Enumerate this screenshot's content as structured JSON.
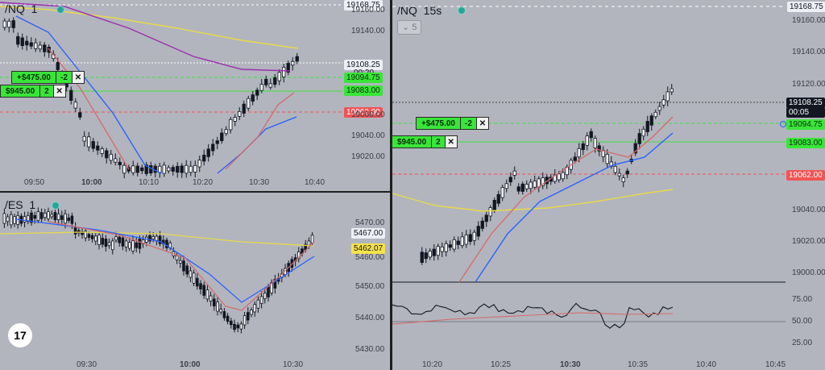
{
  "top_left": {
    "symbol": "/NQ",
    "interval": "1",
    "price_labels": [
      {
        "text": "19168.75",
        "color": "#eceff4"
      },
      {
        "text": "19108.25",
        "color": "#eceff4"
      },
      {
        "text": "00:20",
        "color": "#eceff4"
      },
      {
        "text": "19094.75",
        "color": "#39e539"
      },
      {
        "text": "19083.00",
        "color": "#39e539"
      },
      {
        "text": "19062.00",
        "color": "#f05454"
      }
    ],
    "axis_ticks": [
      "19160.00",
      "19140.00",
      "19060.00",
      "19040.00",
      "19020.00"
    ],
    "time_ticks": [
      "09:50",
      "10:00",
      "10:10",
      "10:20",
      "10:30",
      "10:40"
    ],
    "orders": [
      {
        "pl": "+$475.00",
        "qty": "-2",
        "close": "✕"
      },
      {
        "pl": "$945.00",
        "qty": "2",
        "close": "✕"
      }
    ]
  },
  "bottom_left": {
    "symbol": "/ES",
    "interval": "1",
    "price_labels": [
      {
        "text": "5467.00",
        "color": "#eceff4"
      },
      {
        "text": "5462.07",
        "color": "#f5e14a"
      }
    ],
    "axis_ticks": [
      "5470.00",
      "5460.00",
      "5450.00",
      "5440.00",
      "5430.00"
    ],
    "time_ticks": [
      "09:30",
      "10:00",
      "10:30"
    ]
  },
  "right": {
    "symbol": "/NQ",
    "interval_title": "15s",
    "interval": "5",
    "price_labels": [
      {
        "text": "19168.75",
        "color": "#eceff4"
      },
      {
        "text": "19108.25",
        "color": "#131722"
      },
      {
        "text": "00:05",
        "color": "#131722"
      },
      {
        "text": "19094.75",
        "color": "#39e539"
      },
      {
        "text": "19083.00",
        "color": "#39e539"
      },
      {
        "text": "19062.00",
        "color": "#f05454"
      }
    ],
    "axis_ticks": [
      "19160.00",
      "19140.00",
      "19120.00",
      "19040.00",
      "19020.00",
      "19000.00"
    ],
    "indicator_ticks": [
      "75.00",
      "50.00",
      "25.00"
    ],
    "time_ticks": [
      "10:20",
      "10:25",
      "10:30",
      "10:35",
      "10:40",
      "10:45"
    ],
    "orders": [
      {
        "pl": "+$475.00",
        "qty": "-2",
        "close": "✕"
      },
      {
        "pl": "$945.00",
        "qty": "2",
        "close": "✕"
      }
    ]
  },
  "logo": "17"
}
